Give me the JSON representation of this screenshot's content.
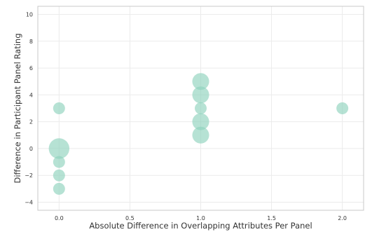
{
  "chart_data": {
    "type": "scatter",
    "title": "",
    "xlabel": "Absolute Difference in Overlapping Attributes Per Panel",
    "ylabel": "Difference in Participant Panel Rating",
    "xlim": [
      -0.15,
      2.15
    ],
    "ylim": [
      -4.6,
      10.6
    ],
    "xticks": [
      0.0,
      0.5,
      1.0,
      1.5,
      2.0
    ],
    "xtick_labels": [
      "0.0",
      "0.5",
      "1.0",
      "1.5",
      "2.0"
    ],
    "yticks": [
      -4,
      -2,
      0,
      2,
      4,
      6,
      8,
      10
    ],
    "ytick_labels": [
      "−4",
      "−2",
      "0",
      "2",
      "4",
      "6",
      "8",
      "10"
    ],
    "grid": true,
    "marker_color": "#8fd3bd",
    "marker_opacity": 0.65,
    "points": [
      {
        "x": 0.0,
        "y": 3,
        "count": 1
      },
      {
        "x": 0.0,
        "y": 0,
        "count": 3
      },
      {
        "x": 0.0,
        "y": -1,
        "count": 1
      },
      {
        "x": 0.0,
        "y": -2,
        "count": 1
      },
      {
        "x": 0.0,
        "y": -3,
        "count": 1
      },
      {
        "x": 1.0,
        "y": 5,
        "count": 2
      },
      {
        "x": 1.0,
        "y": 4,
        "count": 2
      },
      {
        "x": 1.0,
        "y": 3,
        "count": 1
      },
      {
        "x": 1.0,
        "y": 2,
        "count": 2
      },
      {
        "x": 1.0,
        "y": 1,
        "count": 2
      },
      {
        "x": 2.0,
        "y": 3,
        "count": 1
      }
    ]
  }
}
